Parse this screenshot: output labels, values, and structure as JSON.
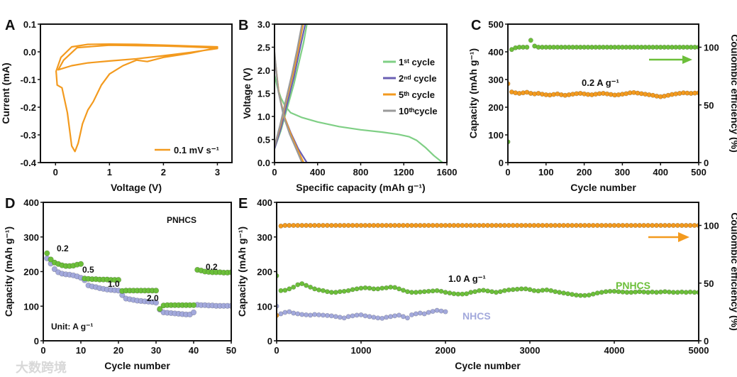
{
  "watermark": "大数跨境",
  "chart_data": [
    {
      "panel": "A",
      "type": "line",
      "xlabel": "Voltage (V)",
      "ylabel": "Current (mA)",
      "xlim": [
        -0.28,
        3.27
      ],
      "ylim": [
        -0.4,
        0.1
      ],
      "xticks": [
        0,
        1,
        2,
        3
      ],
      "yticks": [
        -0.4,
        -0.3,
        -0.2,
        -0.1,
        0.0,
        0.1
      ],
      "ydec": 1,
      "xdec": 0,
      "legend": {
        "position": "bottom-right",
        "entries": [
          "0.1 mV s⁻¹"
        ]
      },
      "series": [
        {
          "name": "0.1 mV s⁻¹",
          "color": "#f39a1e",
          "x": [
            3.0,
            2.5,
            2.0,
            1.7,
            1.5,
            1.25,
            1.0,
            0.85,
            0.7,
            0.6,
            0.5,
            0.42,
            0.36,
            0.3,
            0.22,
            0.12,
            0.03,
            0.01,
            0.1,
            0.3,
            0.6,
            1.0,
            1.5,
            2.0,
            2.5,
            3.0,
            3.0,
            2.5,
            2.0,
            1.5,
            1.0,
            0.6,
            0.3,
            0.05,
            0.15,
            0.4,
            1.0,
            2.0,
            2.5,
            3.0
          ],
          "y": [
            0.015,
            -0.005,
            -0.02,
            -0.035,
            -0.03,
            -0.05,
            -0.08,
            -0.12,
            -0.18,
            -0.21,
            -0.26,
            -0.33,
            -0.36,
            -0.34,
            -0.22,
            -0.13,
            -0.12,
            -0.07,
            -0.02,
            0.018,
            0.027,
            0.028,
            0.027,
            0.024,
            0.021,
            0.018,
            0.012,
            -0.002,
            -0.014,
            -0.025,
            -0.033,
            -0.04,
            -0.05,
            -0.065,
            -0.03,
            0.015,
            0.024,
            0.021,
            0.018,
            0.014
          ]
        }
      ]
    },
    {
      "panel": "B",
      "type": "line",
      "xlabel": "Specific capacity (mAh g⁻¹)",
      "ylabel": "Voltage (V)",
      "xlim": [
        0,
        1600
      ],
      "ylim": [
        0,
        3
      ],
      "xticks": [
        0,
        400,
        800,
        1200,
        1600
      ],
      "yticks": [
        0,
        0.5,
        1,
        1.5,
        2,
        2.5,
        3
      ],
      "ydec": 1,
      "xdec": 0,
      "legend": {
        "position": "top-right",
        "entries": [
          "1ˢᵗ  cycle",
          "2ⁿᵈ  cycle",
          "5ᵗʰ  cycle",
          "10ᵗʰcycle"
        ]
      },
      "series": [
        {
          "name": "1ˢᵗ  cycle",
          "color": "#7fcf85",
          "segments": [
            {
              "x": [
                0,
                30,
                60,
                100,
                150,
                250,
                400,
                600,
                800,
                1000,
                1150,
                1250,
                1320,
                1400,
                1480,
                1560
              ],
              "y": [
                1.9,
                1.6,
                1.4,
                1.22,
                1.08,
                0.98,
                0.88,
                0.78,
                0.71,
                0.66,
                0.61,
                0.56,
                0.48,
                0.33,
                0.15,
                0
              ]
            },
            {
              "x": [
                0,
                60,
                120,
                180,
                230,
                270,
                300
              ],
              "y": [
                0.3,
                0.7,
                1.2,
                1.7,
                2.2,
                2.6,
                3.0
              ]
            }
          ]
        },
        {
          "name": "2ⁿᵈ  cycle",
          "color": "#6a5fb3",
          "segments": [
            {
              "x": [
                0,
                40,
                90,
                150,
                220,
                300
              ],
              "y": [
                2.3,
                1.5,
                1.0,
                0.65,
                0.3,
                0
              ]
            },
            {
              "x": [
                0,
                60,
                120,
                180,
                230,
                285
              ],
              "y": [
                0.3,
                0.75,
                1.3,
                1.85,
                2.4,
                3.0
              ]
            }
          ]
        },
        {
          "name": "5ᵗʰ  cycle",
          "color": "#f39a1e",
          "segments": [
            {
              "x": [
                0,
                40,
                90,
                150,
                210,
                270
              ],
              "y": [
                2.35,
                1.5,
                1.0,
                0.62,
                0.3,
                0
              ]
            },
            {
              "x": [
                0,
                55,
                110,
                170,
                220,
                265
              ],
              "y": [
                0.35,
                0.8,
                1.35,
                1.9,
                2.45,
                3.0
              ]
            }
          ]
        },
        {
          "name": "10ᵗʰcycle",
          "color": "#9a9a9a",
          "segments": [
            {
              "x": [
                0,
                35,
                85,
                140,
                200,
                255
              ],
              "y": [
                2.4,
                1.55,
                1.0,
                0.62,
                0.3,
                0
              ]
            },
            {
              "x": [
                0,
                50,
                105,
                160,
                210,
                255
              ],
              "y": [
                0.35,
                0.8,
                1.35,
                1.9,
                2.45,
                3.0
              ]
            }
          ]
        }
      ]
    },
    {
      "panel": "C",
      "type": "scatter",
      "xlabel": "Cycle number",
      "ylabel": "Capacity (mAh g⁻¹)",
      "y2label": "Coulombic efficiency (%)",
      "xlim": [
        0,
        500
      ],
      "ylim": [
        0,
        500
      ],
      "y2lim": [
        0,
        120
      ],
      "xticks": [
        0,
        100,
        200,
        300,
        400,
        500
      ],
      "yticks": [
        0,
        100,
        200,
        300,
        400,
        500
      ],
      "y2ticks": [
        0,
        50,
        100
      ],
      "ydec": 0,
      "xdec": 0,
      "annotations": [
        "0.2 A g⁻¹"
      ],
      "series": [
        {
          "name": "Capacity",
          "color": "#f39a1e",
          "axis": "left",
          "x_step": 10,
          "y": [
            285,
            255,
            252,
            250,
            252,
            254,
            250,
            248,
            250,
            247,
            245,
            244,
            246,
            248,
            245,
            243,
            245,
            247,
            249,
            250,
            248,
            246,
            245,
            247,
            249,
            250,
            248,
            246,
            244,
            245,
            247,
            249,
            252,
            253,
            251,
            249,
            247,
            245,
            243,
            240,
            238,
            240,
            243,
            246,
            248,
            250,
            252,
            251,
            250,
            251,
            252
          ]
        },
        {
          "name": "Coulombic efficiency",
          "color": "#6cbf3a",
          "axis": "right",
          "x_step": 10,
          "y": [
            18,
            98,
            99.5,
            100,
            100,
            100,
            106,
            101,
            100,
            100,
            100,
            100,
            100,
            100,
            100,
            100,
            100,
            100,
            100,
            100,
            100,
            100,
            100,
            100,
            100,
            100,
            100,
            100,
            100,
            100,
            100,
            100,
            100,
            100,
            100,
            100,
            100,
            100,
            100,
            100,
            100,
            100,
            100,
            100,
            100,
            100,
            100,
            100,
            100,
            100,
            100
          ]
        }
      ]
    },
    {
      "panel": "D",
      "type": "scatter",
      "xlabel": "Cycle number",
      "ylabel": "Capacity (mAh g⁻¹)",
      "xlim": [
        0,
        50
      ],
      "ylim": [
        0,
        400
      ],
      "xticks": [
        0,
        10,
        20,
        30,
        40,
        50
      ],
      "yticks": [
        0,
        100,
        200,
        300,
        400
      ],
      "ydec": 0,
      "xdec": 0,
      "annotations": [
        "PNHCS",
        "Unit: A g⁻¹",
        "0.2",
        "0.5",
        "1.0",
        "2.0",
        "0.2"
      ],
      "series": [
        {
          "name": "NHCS",
          "color": "#a3a9dc",
          "x_start": 1,
          "y": [
            238,
            223,
            207,
            198,
            194,
            192,
            191,
            189,
            186,
            182,
            175,
            160,
            157,
            155,
            152,
            150,
            148,
            147,
            146,
            145,
            132,
            122,
            120,
            118,
            116,
            115,
            114,
            113,
            112,
            110,
            90,
            82,
            81,
            80,
            79,
            78,
            77,
            76,
            76,
            82,
            104,
            103,
            103,
            102,
            102,
            101,
            101,
            101,
            101,
            101
          ]
        },
        {
          "name": "PNHCS",
          "color": "#6cbf3a",
          "x_start": 1,
          "y": [
            253,
            235,
            226,
            222,
            218,
            216,
            216,
            217,
            220,
            222,
            180,
            179,
            178,
            178,
            177,
            177,
            177,
            176,
            176,
            176,
            144,
            145,
            145,
            145,
            145,
            145,
            145,
            145,
            145,
            145,
            92,
            102,
            103,
            103,
            103,
            103,
            103,
            103,
            103,
            103,
            205,
            203,
            200,
            199,
            198,
            198,
            198,
            197,
            197,
            198
          ]
        }
      ]
    },
    {
      "panel": "E",
      "type": "scatter",
      "xlabel": "Cycle number",
      "ylabel": "Capacity (mAh g⁻¹)",
      "y2label": "Coulombic efficiency (%)",
      "xlim": [
        0,
        5000
      ],
      "ylim": [
        0,
        400
      ],
      "y2lim": [
        0,
        120
      ],
      "xticks": [
        0,
        1000,
        2000,
        3000,
        4000,
        5000
      ],
      "yticks": [
        0,
        100,
        200,
        300,
        400
      ],
      "y2ticks": [
        0,
        50,
        100
      ],
      "ydec": 0,
      "xdec": 0,
      "annotations": [
        "1.0 A g⁻¹",
        "PNHCS",
        "NHCS"
      ],
      "series": [
        {
          "name": "Coulombic efficiency",
          "color": "#f39a1e",
          "axis": "right",
          "x_step": 50,
          "y": [
            22,
            99.5,
            100,
            100,
            100,
            100,
            100,
            100,
            100,
            100,
            100,
            100,
            100,
            100,
            100,
            100,
            100,
            100,
            100,
            100,
            100,
            100,
            100,
            100,
            100,
            100,
            100,
            100,
            100,
            100,
            100,
            100,
            100,
            100,
            100,
            100,
            100,
            100,
            100,
            100,
            100,
            100,
            100,
            100,
            100,
            100,
            100,
            100,
            100,
            100,
            100,
            100,
            100,
            100,
            100,
            100,
            100,
            100,
            100,
            100,
            100,
            100,
            100,
            100,
            100,
            100,
            100,
            100,
            100,
            100,
            100,
            100,
            100,
            100,
            100,
            100,
            100,
            100,
            100,
            100,
            100,
            100,
            100,
            100,
            100,
            100,
            100,
            100,
            100,
            100,
            100,
            100,
            100,
            100,
            100,
            100,
            100,
            100,
            100,
            100,
            100
          ]
        },
        {
          "name": "PNHCS",
          "color": "#6cbf3a",
          "axis": "left",
          "x_step": 50,
          "y": [
            188,
            145,
            146,
            150,
            155,
            162,
            165,
            160,
            155,
            150,
            147,
            145,
            142,
            140,
            140,
            142,
            143,
            145,
            148,
            150,
            152,
            153,
            152,
            150,
            150,
            152,
            153,
            155,
            154,
            150,
            146,
            142,
            140,
            140,
            141,
            142,
            143,
            144,
            145,
            143,
            140,
            138,
            136,
            135,
            135,
            136,
            140,
            142,
            145,
            146,
            144,
            142,
            140,
            142,
            145,
            147,
            148,
            149,
            150,
            150,
            148,
            145,
            144,
            146,
            147,
            145,
            142,
            140,
            138,
            136,
            134,
            132,
            131,
            131,
            132,
            135,
            138,
            140,
            142,
            143,
            143,
            142,
            141,
            140,
            140,
            141,
            142,
            141,
            140,
            141,
            140,
            141,
            142,
            141,
            140,
            140,
            141,
            140,
            141,
            140,
            140
          ]
        },
        {
          "name": "NHCS",
          "color": "#a3a9dc",
          "axis": "left",
          "x_step": 50,
          "y": [
            100,
            78,
            82,
            84,
            80,
            78,
            76,
            75,
            74,
            76,
            75,
            74,
            73,
            72,
            70,
            68,
            66,
            70,
            72,
            74,
            75,
            72,
            70,
            68,
            66,
            65,
            68,
            70,
            72,
            74,
            70,
            66,
            75,
            78,
            80,
            78,
            82,
            85,
            88,
            86,
            84
          ]
        }
      ]
    }
  ]
}
